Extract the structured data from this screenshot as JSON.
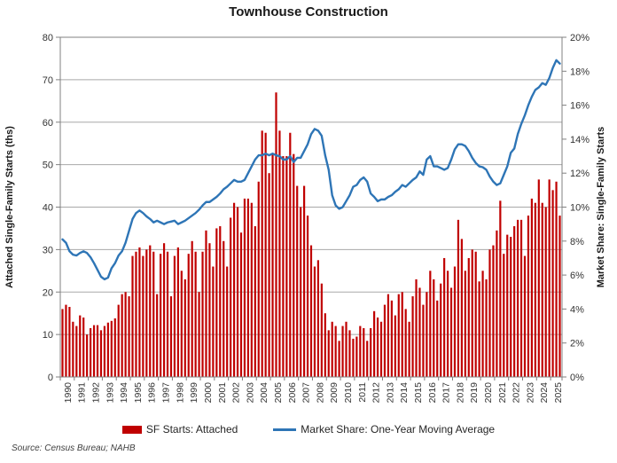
{
  "source": "Source: Census Bureau; NAHB",
  "chart_data": {
    "type": "bar+line combo",
    "title": "Townhouse Construction",
    "frequency": "quarterly",
    "start_period": "1990Q1",
    "end_period": "2025Q3",
    "grid": "horizontal gridlines on",
    "legend_position": "bottom center",
    "year_labels": [
      "1990",
      "1991",
      "1992",
      "1993",
      "1994",
      "1995",
      "1996",
      "1997",
      "1998",
      "1999",
      "2000",
      "2001",
      "2002",
      "2003",
      "2004",
      "2005",
      "2006",
      "2007",
      "2008",
      "2009",
      "2010",
      "2011",
      "2012",
      "2013",
      "2014",
      "2015",
      "2016",
      "2017",
      "2018",
      "2019",
      "2020",
      "2021",
      "2022",
      "2023",
      "2024",
      "2025"
    ],
    "left_axis": {
      "label": "Attached Single-Family Starts (ths)",
      "min": 0,
      "max": 80,
      "step": 10,
      "ticks": [
        "0",
        "10",
        "20",
        "30",
        "40",
        "50",
        "60",
        "70",
        "80"
      ]
    },
    "right_axis": {
      "label": "Market Share: Single-Family Starts",
      "min": 0,
      "max": 20,
      "step": 2,
      "ticks": [
        "0%",
        "2%",
        "4%",
        "6%",
        "8%",
        "10%",
        "12%",
        "14%",
        "16%",
        "18%",
        "20%"
      ]
    },
    "series": [
      {
        "name": "SF Starts: Attached",
        "type": "bar",
        "axis": "left",
        "color": "#C00000",
        "values": [
          16,
          17,
          16.5,
          13,
          12,
          14.5,
          14,
          10,
          11.5,
          12.2,
          12.2,
          11,
          12,
          12.8,
          13.2,
          13.8,
          17,
          19.5,
          20,
          19,
          28.5,
          29.5,
          30.5,
          28.5,
          30,
          31,
          29.5,
          19.5,
          29,
          31.5,
          29.5,
          19,
          28.5,
          30.5,
          25,
          23,
          29,
          32,
          29.5,
          20,
          29.5,
          34.5,
          31.5,
          26,
          35,
          35.5,
          32,
          26,
          37.5,
          41,
          40,
          34,
          42,
          42,
          41,
          35.5,
          46,
          58,
          57.5,
          48,
          52.5,
          67,
          58,
          52,
          52,
          57.5,
          52.5,
          45,
          40,
          45,
          38,
          31,
          26,
          27.5,
          22,
          15,
          11,
          13,
          12,
          8.5,
          12,
          13,
          11,
          9,
          9.5,
          12,
          11.5,
          8.5,
          11.5,
          15.5,
          14,
          13,
          17,
          19.5,
          18,
          14.5,
          19.5,
          20,
          16,
          13,
          19,
          23,
          21,
          17,
          20,
          25,
          23,
          18,
          22,
          28,
          25,
          21,
          26,
          37,
          32.5,
          25,
          28,
          30,
          29.5,
          22.5,
          25,
          23,
          30,
          31,
          34.5,
          41.5,
          29,
          33.5,
          33,
          35.5,
          37,
          37,
          28.5,
          38,
          42,
          41,
          46.5,
          41,
          40,
          46.5,
          44,
          46,
          38
        ]
      },
      {
        "name": "Market Share: One-Year Moving Average",
        "type": "line",
        "axis": "right",
        "color": "#2E75B6",
        "values": [
          8.1,
          7.9,
          7.4,
          7.2,
          7.15,
          7.3,
          7.4,
          7.3,
          7.05,
          6.7,
          6.3,
          5.9,
          5.75,
          5.85,
          6.4,
          6.7,
          7.15,
          7.4,
          7.9,
          8.6,
          9.3,
          9.65,
          9.8,
          9.65,
          9.45,
          9.3,
          9.1,
          9.2,
          9.1,
          9.0,
          9.1,
          9.15,
          9.2,
          9.0,
          9.1,
          9.2,
          9.35,
          9.5,
          9.65,
          9.85,
          10.1,
          10.3,
          10.3,
          10.45,
          10.6,
          10.8,
          11.05,
          11.2,
          11.4,
          11.6,
          11.5,
          11.5,
          11.6,
          12.0,
          12.4,
          12.8,
          13.05,
          13.05,
          13.15,
          13.05,
          13.15,
          13.05,
          13.0,
          12.8,
          12.8,
          13.0,
          12.65,
          12.9,
          12.9,
          13.3,
          13.7,
          14.3,
          14.6,
          14.5,
          14.2,
          13.05,
          12.2,
          10.7,
          10.1,
          9.9,
          10.0,
          10.35,
          10.7,
          11.2,
          11.3,
          11.6,
          11.75,
          11.5,
          10.8,
          10.6,
          10.35,
          10.45,
          10.45,
          10.6,
          10.7,
          10.9,
          11.05,
          11.3,
          11.2,
          11.4,
          11.6,
          11.75,
          12.1,
          11.9,
          12.8,
          13.0,
          12.4,
          12.4,
          12.3,
          12.2,
          12.3,
          12.8,
          13.4,
          13.7,
          13.7,
          13.6,
          13.3,
          12.9,
          12.6,
          12.4,
          12.35,
          12.2,
          11.8,
          11.5,
          11.3,
          11.4,
          11.9,
          12.4,
          13.2,
          13.45,
          14.3,
          14.9,
          15.4,
          16.0,
          16.5,
          16.9,
          17.05,
          17.3,
          17.2,
          17.6,
          18.2,
          18.65,
          18.45
        ]
      }
    ]
  }
}
